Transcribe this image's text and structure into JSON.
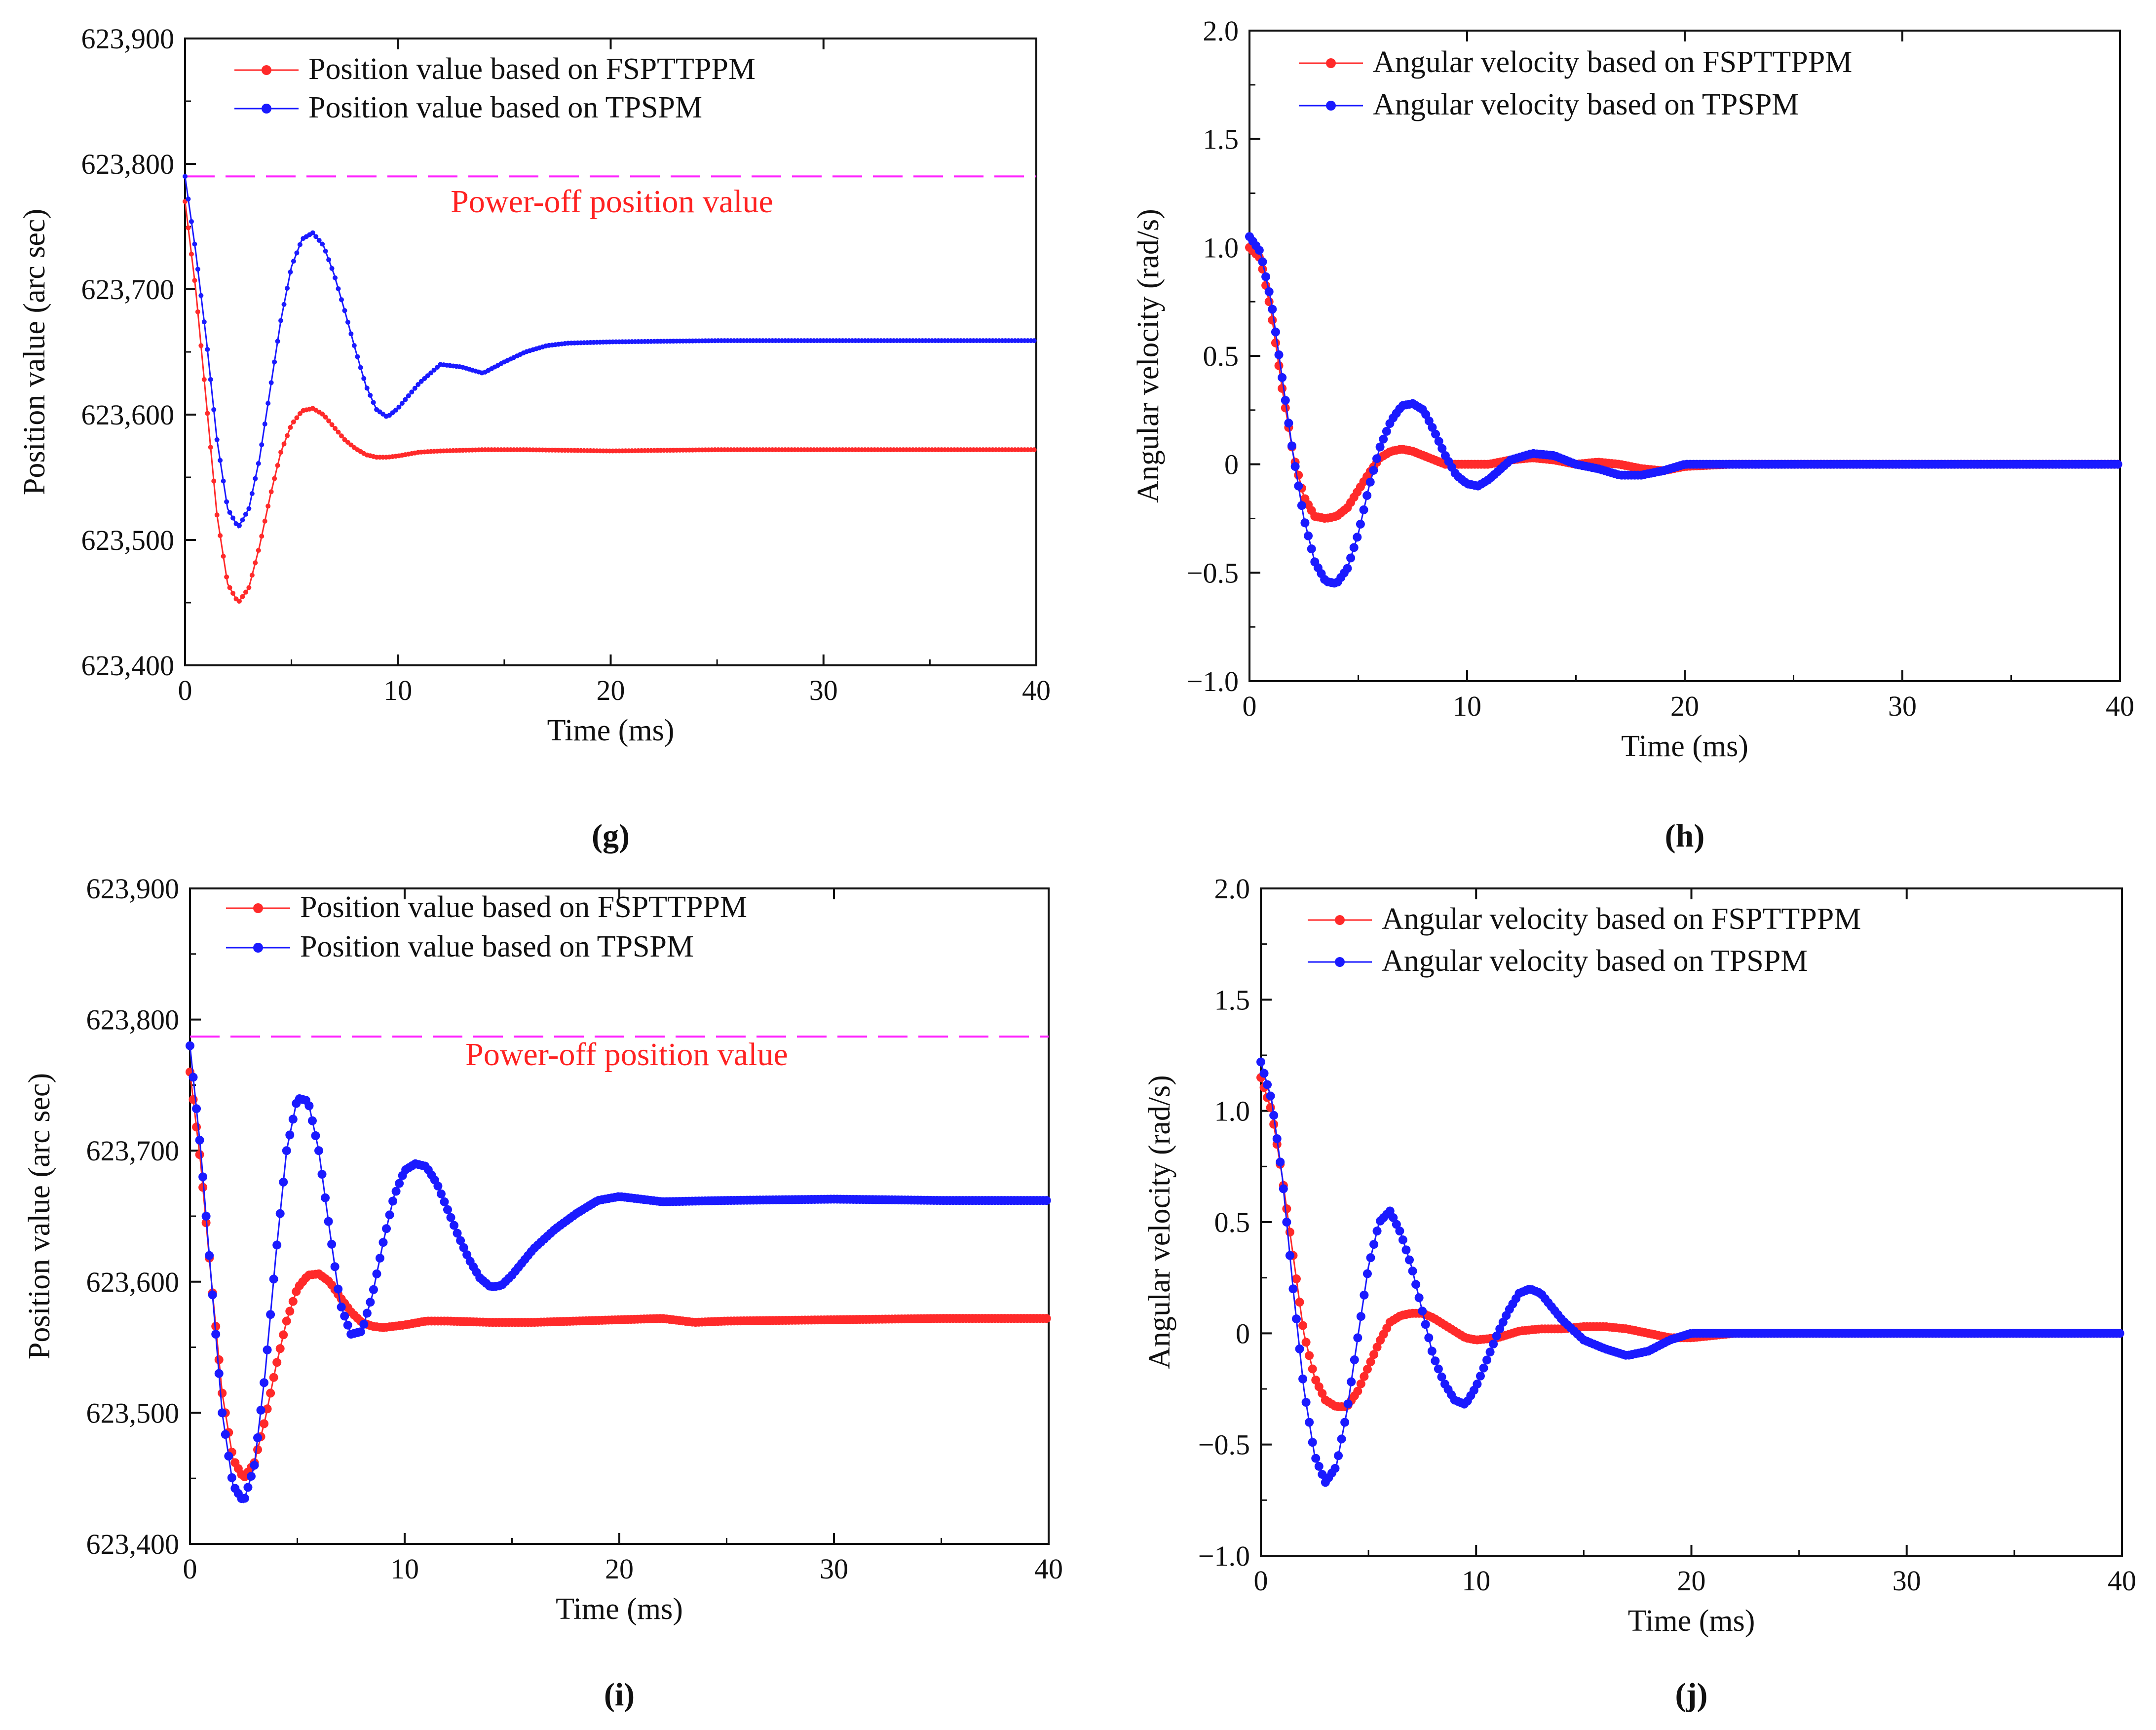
{
  "figure": {
    "colors": {
      "red": "#ff2a2a",
      "blue": "#1a1aff",
      "magenta": "#ff22ff"
    },
    "panels": [
      {
        "id": "g",
        "caption": "(g)"
      },
      {
        "id": "h",
        "caption": "(h)"
      },
      {
        "id": "i",
        "caption": "(i)"
      },
      {
        "id": "j",
        "caption": "(j)"
      }
    ]
  },
  "chart_data": [
    {
      "panel": "g",
      "type": "line",
      "caption": "(g)",
      "xlabel": "Time (ms)",
      "ylabel": "Position value (arc sec)",
      "xlim": [
        0,
        40
      ],
      "ylim": [
        623400,
        623900
      ],
      "xticks": [
        "0",
        "10",
        "20",
        "30",
        "40"
      ],
      "yticks": [
        "623,400",
        "623,500",
        "623,600",
        "623,700",
        "623,800",
        "623,900"
      ],
      "legend_position": "top-center",
      "reference_line": {
        "value": 623790,
        "label": "Power-off position value",
        "style": "dashed"
      },
      "series": [
        {
          "name": "Position value based on FSPTTPPM",
          "color": "#ff2a2a",
          "x": [
            0,
            0.5,
            1,
            1.5,
            2,
            2.5,
            3,
            3.5,
            4,
            4.5,
            5,
            5.5,
            6,
            6.5,
            7,
            7.5,
            8,
            8.5,
            9,
            9.5,
            10,
            11,
            12,
            14,
            16,
            20,
            25,
            30,
            35,
            40
          ],
          "y": [
            623770,
            623700,
            623610,
            623520,
            623465,
            623450,
            623462,
            623495,
            623535,
            623570,
            623592,
            623603,
            623605,
            623600,
            623590,
            623580,
            623573,
            623568,
            623566,
            623566,
            623567,
            623570,
            623571,
            623572,
            623572,
            623571,
            623572,
            623572,
            623572,
            623572
          ]
        },
        {
          "name": "Position value based on TPSPM",
          "color": "#1a1aff",
          "x": [
            0,
            0.5,
            1,
            1.5,
            2,
            2.5,
            3,
            3.5,
            4,
            4.5,
            5,
            5.5,
            6,
            6.5,
            7,
            7.5,
            8,
            8.5,
            9,
            9.5,
            10,
            11,
            12,
            13,
            14,
            15,
            16,
            17,
            18,
            20,
            25,
            30,
            35,
            40
          ],
          "y": [
            623790,
            623730,
            623660,
            623580,
            623525,
            623510,
            623525,
            623565,
            623620,
            623675,
            623718,
            623740,
            623745,
            623735,
            623712,
            623683,
            623652,
            623623,
            623604,
            623598,
            623605,
            623625,
            623640,
            623638,
            623633,
            623642,
            623650,
            623655,
            623657,
            623658,
            623659,
            623659,
            623659,
            623659
          ]
        }
      ]
    },
    {
      "panel": "h",
      "type": "scatter",
      "caption": "(h)",
      "xlabel": "Time (ms)",
      "ylabel": "Angular velocity (rad/s)",
      "xlim": [
        0,
        40
      ],
      "ylim": [
        -1.0,
        2.0
      ],
      "xticks": [
        "0",
        "10",
        "20",
        "30",
        "40"
      ],
      "yticks": [
        "−1.0",
        "−0.5",
        "0",
        "0.5",
        "1.0",
        "1.5",
        "2.0"
      ],
      "legend_position": "top-center",
      "series": [
        {
          "name": "Angular velocity  based on FSPTTPPM",
          "color": "#ff2a2a",
          "x": [
            0,
            0.5,
            1,
            1.5,
            2,
            2.5,
            3,
            3.5,
            4,
            4.5,
            5,
            5.5,
            6,
            6.5,
            7,
            7.5,
            8,
            8.5,
            9,
            10,
            11,
            12,
            13,
            14,
            15,
            16,
            17,
            18,
            19,
            20,
            22,
            25,
            28,
            30,
            35,
            40
          ],
          "y": [
            1.0,
            0.95,
            0.7,
            0.35,
            0.05,
            -0.15,
            -0.24,
            -0.25,
            -0.24,
            -0.2,
            -0.12,
            -0.04,
            0.03,
            0.06,
            0.07,
            0.06,
            0.04,
            0.02,
            0.0,
            0.0,
            0.0,
            0.02,
            0.03,
            0.02,
            0.0,
            0.01,
            0.0,
            -0.02,
            -0.03,
            -0.01,
            0.0,
            0.0,
            0.0,
            0.0,
            0.0,
            0.0
          ]
        },
        {
          "name": "Angular velocity  based on TPSPM",
          "color": "#1a1aff",
          "x": [
            0,
            0.5,
            1,
            1.5,
            2,
            2.5,
            3,
            3.5,
            4,
            4.5,
            5,
            5.5,
            6,
            6.5,
            7,
            7.5,
            8,
            8.5,
            9,
            9.5,
            10,
            10.5,
            11,
            12,
            13,
            14,
            15,
            16,
            17,
            18,
            19,
            20,
            25,
            30,
            35,
            40
          ],
          "y": [
            1.05,
            0.98,
            0.75,
            0.4,
            0.05,
            -0.25,
            -0.45,
            -0.54,
            -0.55,
            -0.48,
            -0.32,
            -0.1,
            0.08,
            0.2,
            0.27,
            0.28,
            0.25,
            0.15,
            0.04,
            -0.05,
            -0.09,
            -0.1,
            -0.07,
            0.02,
            0.05,
            0.04,
            0.0,
            -0.02,
            -0.05,
            -0.05,
            -0.03,
            0.0,
            0.0,
            0.0,
            0.0,
            0.0
          ]
        }
      ]
    },
    {
      "panel": "i",
      "type": "line",
      "caption": "(i)",
      "xlabel": "Time (ms)",
      "ylabel": "Position value (arc sec)",
      "xlim": [
        0,
        40
      ],
      "ylim": [
        623400,
        623900
      ],
      "xticks": [
        "0",
        "10",
        "20",
        "30",
        "40"
      ],
      "yticks": [
        "623,400",
        "623,500",
        "623,600",
        "623,700",
        "623,800",
        "623,900"
      ],
      "legend_position": "top-center",
      "reference_line": {
        "value": 623787,
        "label": "Power-off position value",
        "style": "dashed"
      },
      "series": [
        {
          "name": "Position value based on FSPTTPPM",
          "color": "#ff2a2a",
          "x": [
            0,
            0.5,
            1,
            1.5,
            2,
            2.5,
            3,
            3.5,
            4,
            4.5,
            5,
            5.5,
            6,
            6.5,
            7,
            7.5,
            8,
            8.5,
            9,
            10,
            11,
            12,
            14,
            16,
            20,
            22,
            23.5,
            25,
            30,
            35,
            40
          ],
          "y": [
            623760,
            623690,
            623600,
            623515,
            623465,
            623450,
            623462,
            623495,
            623535,
            623570,
            623595,
            623605,
            623606,
            623600,
            623588,
            623577,
            623569,
            623566,
            623565,
            623567,
            623570,
            623570,
            623569,
            623569,
            623571,
            623572,
            623569,
            623570,
            623571,
            623572,
            623572
          ]
        },
        {
          "name": "Position value based on TPSPM",
          "color": "#1a1aff",
          "x": [
            0,
            0.5,
            1,
            1.5,
            2,
            2.5,
            3,
            3.5,
            4,
            4.5,
            5,
            5.5,
            6,
            6.5,
            7,
            7.5,
            8,
            8.5,
            9,
            9.5,
            10,
            10.5,
            11,
            11.5,
            12,
            12.5,
            13,
            13.5,
            14,
            14.5,
            15,
            15.5,
            16,
            17,
            18,
            19,
            20,
            22,
            25,
            30,
            35,
            40
          ],
          "y": [
            623780,
            623700,
            623600,
            623500,
            623445,
            623432,
            623460,
            623530,
            623620,
            623700,
            623740,
            623738,
            623700,
            623640,
            623583,
            623560,
            623562,
            623590,
            623630,
            623665,
            623685,
            623690,
            623688,
            623675,
            623655,
            623635,
            623617,
            623603,
            623596,
            623597,
            623605,
            623615,
            623625,
            623640,
            623652,
            623662,
            623665,
            623661,
            623662,
            623663,
            623662,
            623662
          ]
        }
      ]
    },
    {
      "panel": "j",
      "type": "line",
      "caption": "(j)",
      "xlabel": "Time (ms)",
      "ylabel": "Angular velocity (rad/s)",
      "xlim": [
        0,
        40
      ],
      "ylim": [
        -1.0,
        2.0
      ],
      "xticks": [
        "0",
        "10",
        "20",
        "30",
        "40"
      ],
      "yticks": [
        "−1.0",
        "−0.5",
        "0",
        "0.5",
        "1.0",
        "1.5",
        "2.0"
      ],
      "legend_position": "top-center",
      "series": [
        {
          "name": "Angular velocity  based on FSPTTPPM",
          "color": "#ff2a2a",
          "x": [
            0,
            0.5,
            1,
            1.5,
            2,
            2.5,
            3,
            3.5,
            4,
            4.5,
            5,
            5.5,
            6,
            6.5,
            7,
            7.5,
            8,
            8.5,
            9,
            9.5,
            10,
            11,
            12,
            13,
            14,
            15,
            16,
            17,
            18,
            19,
            20,
            22,
            25,
            30,
            35,
            40
          ],
          "y": [
            1.15,
            1.0,
            0.7,
            0.35,
            0.0,
            -0.2,
            -0.3,
            -0.33,
            -0.33,
            -0.26,
            -0.15,
            -0.04,
            0.05,
            0.08,
            0.09,
            0.09,
            0.07,
            0.04,
            0.01,
            -0.02,
            -0.03,
            -0.02,
            0.01,
            0.02,
            0.02,
            0.03,
            0.03,
            0.02,
            0.0,
            -0.02,
            -0.02,
            0.0,
            0.0,
            0.0,
            0.0,
            0.0
          ]
        },
        {
          "name": "Angular velocity  based on TPSPM",
          "color": "#1a1aff",
          "x": [
            0,
            0.5,
            1,
            1.5,
            2,
            2.5,
            3,
            3.5,
            4,
            4.5,
            5,
            5.5,
            6,
            6.5,
            7,
            7.5,
            8,
            8.5,
            9,
            9.5,
            10,
            10.5,
            11,
            11.5,
            12,
            12.5,
            13,
            13.5,
            14,
            15,
            16,
            17,
            18,
            19,
            20,
            22,
            25,
            30,
            35,
            40
          ],
          "y": [
            1.22,
            1.05,
            0.7,
            0.2,
            -0.25,
            -0.55,
            -0.67,
            -0.6,
            -0.35,
            -0.02,
            0.3,
            0.5,
            0.55,
            0.45,
            0.3,
            0.1,
            -0.1,
            -0.22,
            -0.3,
            -0.32,
            -0.24,
            -0.12,
            0.0,
            0.1,
            0.18,
            0.2,
            0.18,
            0.12,
            0.06,
            -0.03,
            -0.07,
            -0.1,
            -0.08,
            -0.03,
            0.0,
            0.0,
            0.0,
            0.0,
            0.0,
            0.0
          ]
        }
      ]
    }
  ]
}
